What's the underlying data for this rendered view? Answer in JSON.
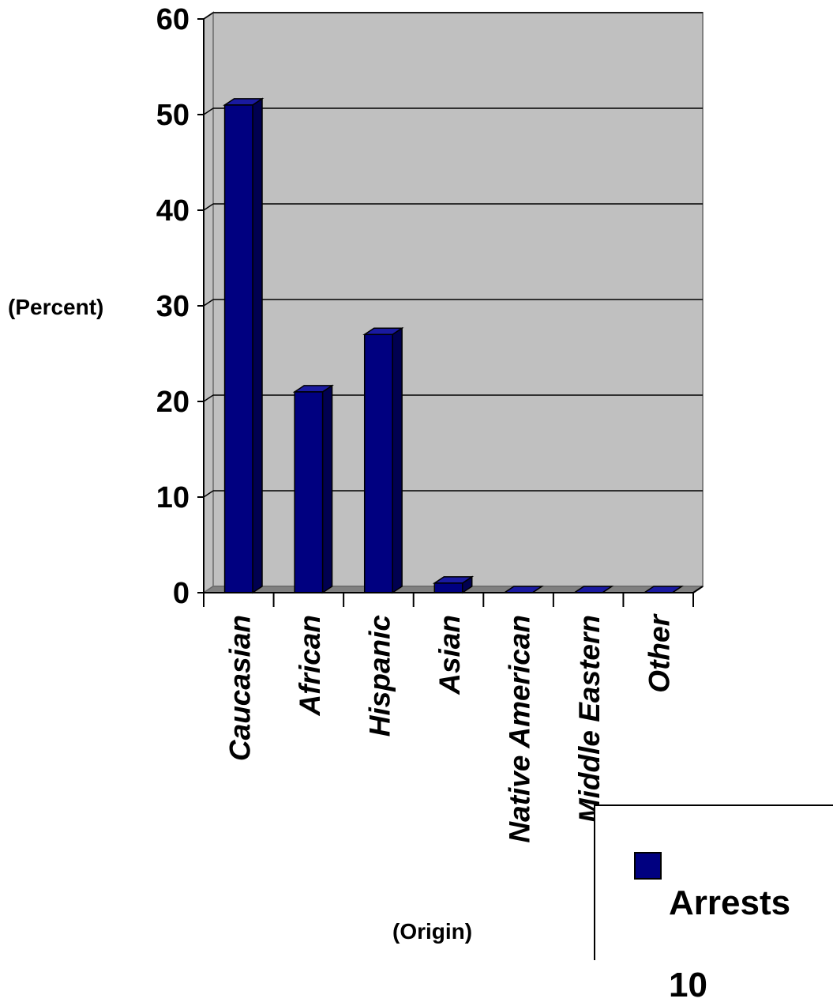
{
  "chart_data": {
    "type": "bar",
    "categories": [
      "Caucasian",
      "African",
      "Hispanic",
      "Asian",
      "Native American",
      "Middle Eastern",
      "Other"
    ],
    "series": [
      {
        "name": "Arrests 10",
        "values": [
          51,
          21,
          27,
          1,
          0,
          0,
          0
        ]
      }
    ],
    "yticks": [
      "0",
      "10",
      "20",
      "30",
      "40",
      "50",
      "60"
    ],
    "ylim": [
      0,
      60
    ],
    "ylabel": "(Percent)",
    "xlabel": "(Origin)",
    "legend": {
      "position": "bottom-right",
      "lines": [
        "Arrests",
        "10"
      ]
    },
    "grid": true,
    "colors": {
      "bar": "#000080",
      "bar_top": "#1a1aa0",
      "bar_side": "#000050",
      "plot_bg": "#c0c0c0",
      "floor": "#808080"
    }
  }
}
